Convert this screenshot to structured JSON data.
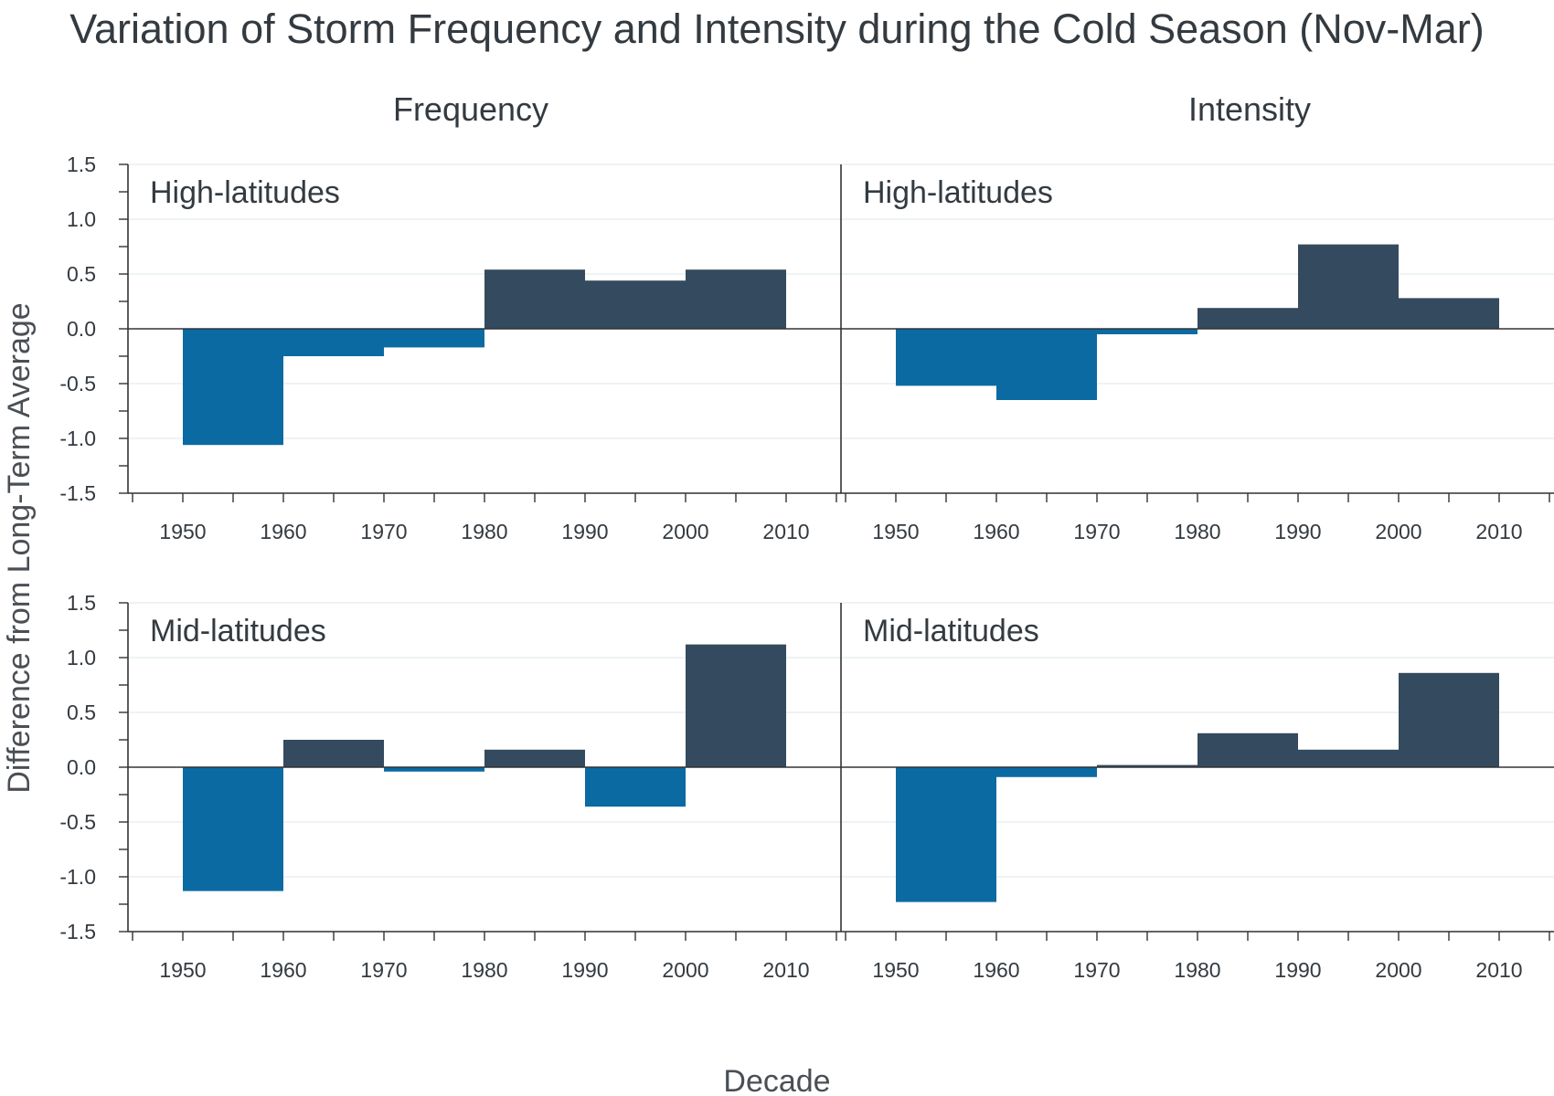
{
  "title": "Variation of Storm Frequency and Intensity during the Cold Season (Nov-Mar)",
  "ylabel": "Difference from Long-Term Average",
  "xlabel": "Decade",
  "columns": [
    "Frequency",
    "Intensity"
  ],
  "colors": {
    "positive": "#344a5e",
    "negative": "#0b6aa2",
    "axis": "#333333",
    "grid": "#e3ecef",
    "text": "#333a40"
  },
  "chart_data": {
    "type": "bar",
    "title": "Variation of Storm Frequency and Intensity during the Cold Season (Nov-Mar)",
    "xlabel": "Decade",
    "ylabel": "Difference from Long-Term Average",
    "ylim": [
      -1.5,
      1.5
    ],
    "yticks": [
      1.5,
      1.0,
      0.5,
      0.0,
      -0.5,
      -1.0,
      -1.5
    ],
    "ytick_labels": [
      "1.5",
      "1.0",
      "0.5",
      "0.0",
      "-0.5",
      "-1.0",
      "-1.5"
    ],
    "xticks": [
      "1950",
      "1960",
      "1970",
      "1980",
      "1990",
      "2000",
      "2010"
    ],
    "categories": [
      "1950s",
      "1960s",
      "1970s",
      "1980s",
      "1990s",
      "2000s"
    ],
    "panels": [
      {
        "column": "Frequency",
        "region": "High-latitudes",
        "values": [
          -1.06,
          -0.25,
          -0.17,
          0.54,
          0.44,
          0.54
        ]
      },
      {
        "column": "Intensity",
        "region": "High-latitudes",
        "values": [
          -0.52,
          -0.65,
          -0.05,
          0.19,
          0.77,
          0.28
        ]
      },
      {
        "column": "Frequency",
        "region": "Mid-latitudes",
        "values": [
          -1.13,
          0.25,
          -0.04,
          0.16,
          -0.36,
          1.12
        ]
      },
      {
        "column": "Intensity",
        "region": "Mid-latitudes",
        "values": [
          -1.23,
          -0.09,
          0.02,
          0.31,
          0.16,
          0.86
        ]
      }
    ]
  }
}
